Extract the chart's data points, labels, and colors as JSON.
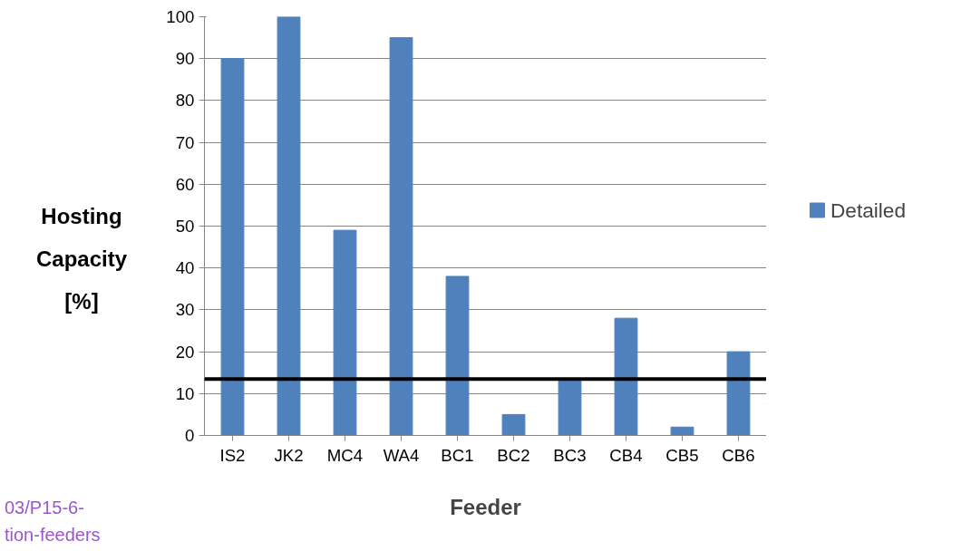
{
  "chart_data": {
    "type": "bar",
    "xlabel": "Feeder",
    "ylabel": "Hosting Capacity [%]",
    "categories": [
      "IS2",
      "JK2",
      "MC4",
      "WA4",
      "BC1",
      "BC2",
      "BC3",
      "CB4",
      "CB5",
      "CB6"
    ],
    "series": [
      {
        "name": "Detailed",
        "color": "#4f81bd",
        "values": [
          90,
          100,
          49,
          95,
          38,
          5,
          13,
          28,
          2,
          20
        ]
      }
    ],
    "ylim": [
      0,
      100
    ],
    "yticks": [
      0,
      10,
      20,
      30,
      40,
      50,
      60,
      70,
      80,
      90,
      100
    ],
    "grid": "y",
    "legend": "right",
    "ref_lines": [
      {
        "axis": "y",
        "value": 13.5,
        "label": null,
        "color": "#000000"
      }
    ],
    "annotations": [
      "03/P15-6-",
      "tion-feeders"
    ]
  }
}
